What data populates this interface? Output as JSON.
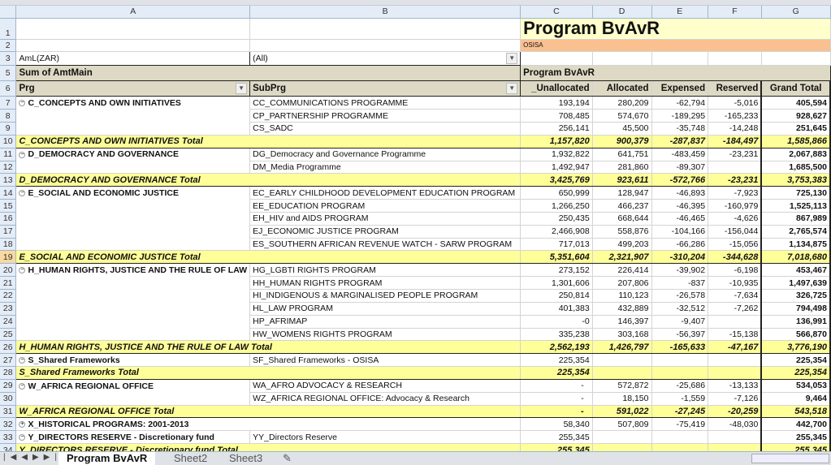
{
  "columns": [
    "A",
    "B",
    "C",
    "D",
    "E",
    "F",
    "G"
  ],
  "title": "Program BvAvR",
  "subtitle": "OSISA",
  "filter": {
    "label": "AmL(ZAR)",
    "value": "(All)"
  },
  "pivot": {
    "data_label": "Sum of AmtMain",
    "col_field": "Program BvAvR",
    "row_field_1": "Prg",
    "row_field_2": "SubPrg",
    "headers": [
      "_Unallocated",
      "Allocated",
      "Expensed",
      "Reserved",
      "Grand Total"
    ]
  },
  "rows": [
    {
      "n": "7",
      "prg": "C_CONCEPTS AND OWN INITIATIVES",
      "sub": "CC_COMMUNICATIONS PROGRAMME",
      "v": [
        "193,194",
        "280,209",
        "-62,794",
        "-5,016",
        "405,594"
      ]
    },
    {
      "n": "8",
      "prg": "",
      "sub": "CP_PARTNERSHIP PROGRAMME",
      "v": [
        "708,485",
        "574,670",
        "-189,295",
        "-165,233",
        "928,627"
      ]
    },
    {
      "n": "9",
      "prg": "",
      "sub": "CS_SADC",
      "v": [
        "256,141",
        "45,500",
        "-35,748",
        "-14,248",
        "251,645"
      ]
    },
    {
      "n": "10",
      "total": "C_CONCEPTS AND OWN INITIATIVES Total",
      "v": [
        "1,157,820",
        "900,379",
        "-287,837",
        "-184,497",
        "1,585,866"
      ]
    },
    {
      "n": "11",
      "prg": "D_DEMOCRACY AND GOVERNANCE",
      "sub": "DG_Democracy and Governance Programme",
      "v": [
        "1,932,822",
        "641,751",
        "-483,459",
        "-23,231",
        "2,067,883"
      ]
    },
    {
      "n": "12",
      "prg": "",
      "sub": "DM_Media Programme",
      "v": [
        "1,492,947",
        "281,860",
        "-89,307",
        "",
        "1,685,500"
      ]
    },
    {
      "n": "13",
      "total": "D_DEMOCRACY AND GOVERNANCE Total",
      "v": [
        "3,425,769",
        "923,611",
        "-572,766",
        "-23,231",
        "3,753,383"
      ]
    },
    {
      "n": "14",
      "prg": "E_SOCIAL AND ECONOMIC JUSTICE",
      "sub": "EC_EARLY CHILDHOOD DEVELOPMENT EDUCATION PROGRAM",
      "v": [
        "650,999",
        "128,947",
        "-46,893",
        "-7,923",
        "725,130"
      ]
    },
    {
      "n": "15",
      "prg": "",
      "sub": "EE_EDUCATION PROGRAM",
      "v": [
        "1,266,250",
        "466,237",
        "-46,395",
        "-160,979",
        "1,525,113"
      ]
    },
    {
      "n": "16",
      "prg": "",
      "sub": "EH_HIV and AIDS PROGRAM",
      "v": [
        "250,435",
        "668,644",
        "-46,465",
        "-4,626",
        "867,989"
      ]
    },
    {
      "n": "17",
      "prg": "",
      "sub": "EJ_ECONOMIC JUSTICE PROGRAM",
      "v": [
        "2,466,908",
        "558,876",
        "-104,166",
        "-156,044",
        "2,765,574"
      ]
    },
    {
      "n": "18",
      "prg": "",
      "sub": "ES_SOUTHERN AFRICAN REVENUE WATCH - SARW PROGRAM",
      "v": [
        "717,013",
        "499,203",
        "-66,286",
        "-15,056",
        "1,134,875"
      ]
    },
    {
      "n": "19",
      "total": "E_SOCIAL AND ECONOMIC JUSTICE Total",
      "v": [
        "5,351,604",
        "2,321,907",
        "-310,204",
        "-344,628",
        "7,018,680"
      ]
    },
    {
      "n": "20",
      "prg": "H_HUMAN RIGHTS, JUSTICE AND THE RULE OF LAW",
      "sub": "HG_LGBTI RIGHTS PROGRAM",
      "v": [
        "273,152",
        "226,414",
        "-39,902",
        "-6,198",
        "453,467"
      ]
    },
    {
      "n": "21",
      "prg": "",
      "sub": "HH_HUMAN RIGHTS PROGRAM",
      "v": [
        "1,301,606",
        "207,806",
        "-837",
        "-10,935",
        "1,497,639"
      ]
    },
    {
      "n": "22",
      "prg": "",
      "sub": "HI_INDIGENOUS & MARGINALISED PEOPLE PROGRAM",
      "v": [
        "250,814",
        "110,123",
        "-26,578",
        "-7,634",
        "326,725"
      ]
    },
    {
      "n": "23",
      "prg": "",
      "sub": "HL_LAW PROGRAM",
      "v": [
        "401,383",
        "432,889",
        "-32,512",
        "-7,262",
        "794,498"
      ]
    },
    {
      "n": "24",
      "prg": "",
      "sub": "HP_AFRIMAP",
      "v": [
        "-0",
        "146,397",
        "-9,407",
        "",
        "136,991"
      ]
    },
    {
      "n": "25",
      "prg": "",
      "sub": "HW_WOMENS RIGHTS PROGRAM",
      "v": [
        "335,238",
        "303,168",
        "-56,397",
        "-15,138",
        "566,870"
      ]
    },
    {
      "n": "26",
      "total": "H_HUMAN RIGHTS, JUSTICE AND THE RULE OF LAW Total",
      "v": [
        "2,562,193",
        "1,426,797",
        "-165,633",
        "-47,167",
        "3,776,190"
      ]
    },
    {
      "n": "27",
      "prg": "S_Shared Frameworks",
      "sub": "SF_Shared Frameworks - OSISA",
      "v": [
        "225,354",
        "",
        "",
        "",
        "225,354"
      ]
    },
    {
      "n": "28",
      "total": "S_Shared Frameworks Total",
      "v": [
        "225,354",
        "",
        "",
        "",
        "225,354"
      ]
    },
    {
      "n": "29",
      "prg": "W_AFRICA REGIONAL OFFICE",
      "sub": "WA_AFRO ADVOCACY & RESEARCH",
      "v": [
        "-",
        "572,872",
        "-25,686",
        "-13,133",
        "534,053"
      ]
    },
    {
      "n": "30",
      "prg": "",
      "sub": "WZ_AFRICA REGIONAL OFFICE: Advocacy & Research",
      "v": [
        "-",
        "18,150",
        "-1,559",
        "-7,126",
        "9,464"
      ]
    },
    {
      "n": "31",
      "total": "W_AFRICA REGIONAL OFFICE Total",
      "v": [
        "-",
        "591,022",
        "-27,245",
        "-20,259",
        "543,518"
      ]
    },
    {
      "n": "32",
      "prg": "X_HISTORICAL PROGRAMS: 2001-2013",
      "collapsed": true,
      "sub": "",
      "v": [
        "58,340",
        "507,809",
        "-75,419",
        "-48,030",
        "442,700"
      ]
    },
    {
      "n": "33",
      "prg": "Y_DIRECTORS RESERVE - Discretionary fund",
      "sub": "YY_Directors Reserve",
      "v": [
        "255,345",
        "",
        "",
        "",
        "255,345"
      ]
    },
    {
      "n": "34",
      "total": "Y_DIRECTORS RESERVE - Discretionary fund Total",
      "v": [
        "255,345",
        "",
        "",
        "",
        "255,345"
      ]
    }
  ],
  "sheet_tabs": [
    "Program BvAvR",
    "Sheet2",
    "Sheet3"
  ],
  "colors": {
    "total_row": "#ffff99",
    "header": "#ddd9c4",
    "title_bg": "#ffffcc",
    "subtitle_bg": "#fac090"
  }
}
